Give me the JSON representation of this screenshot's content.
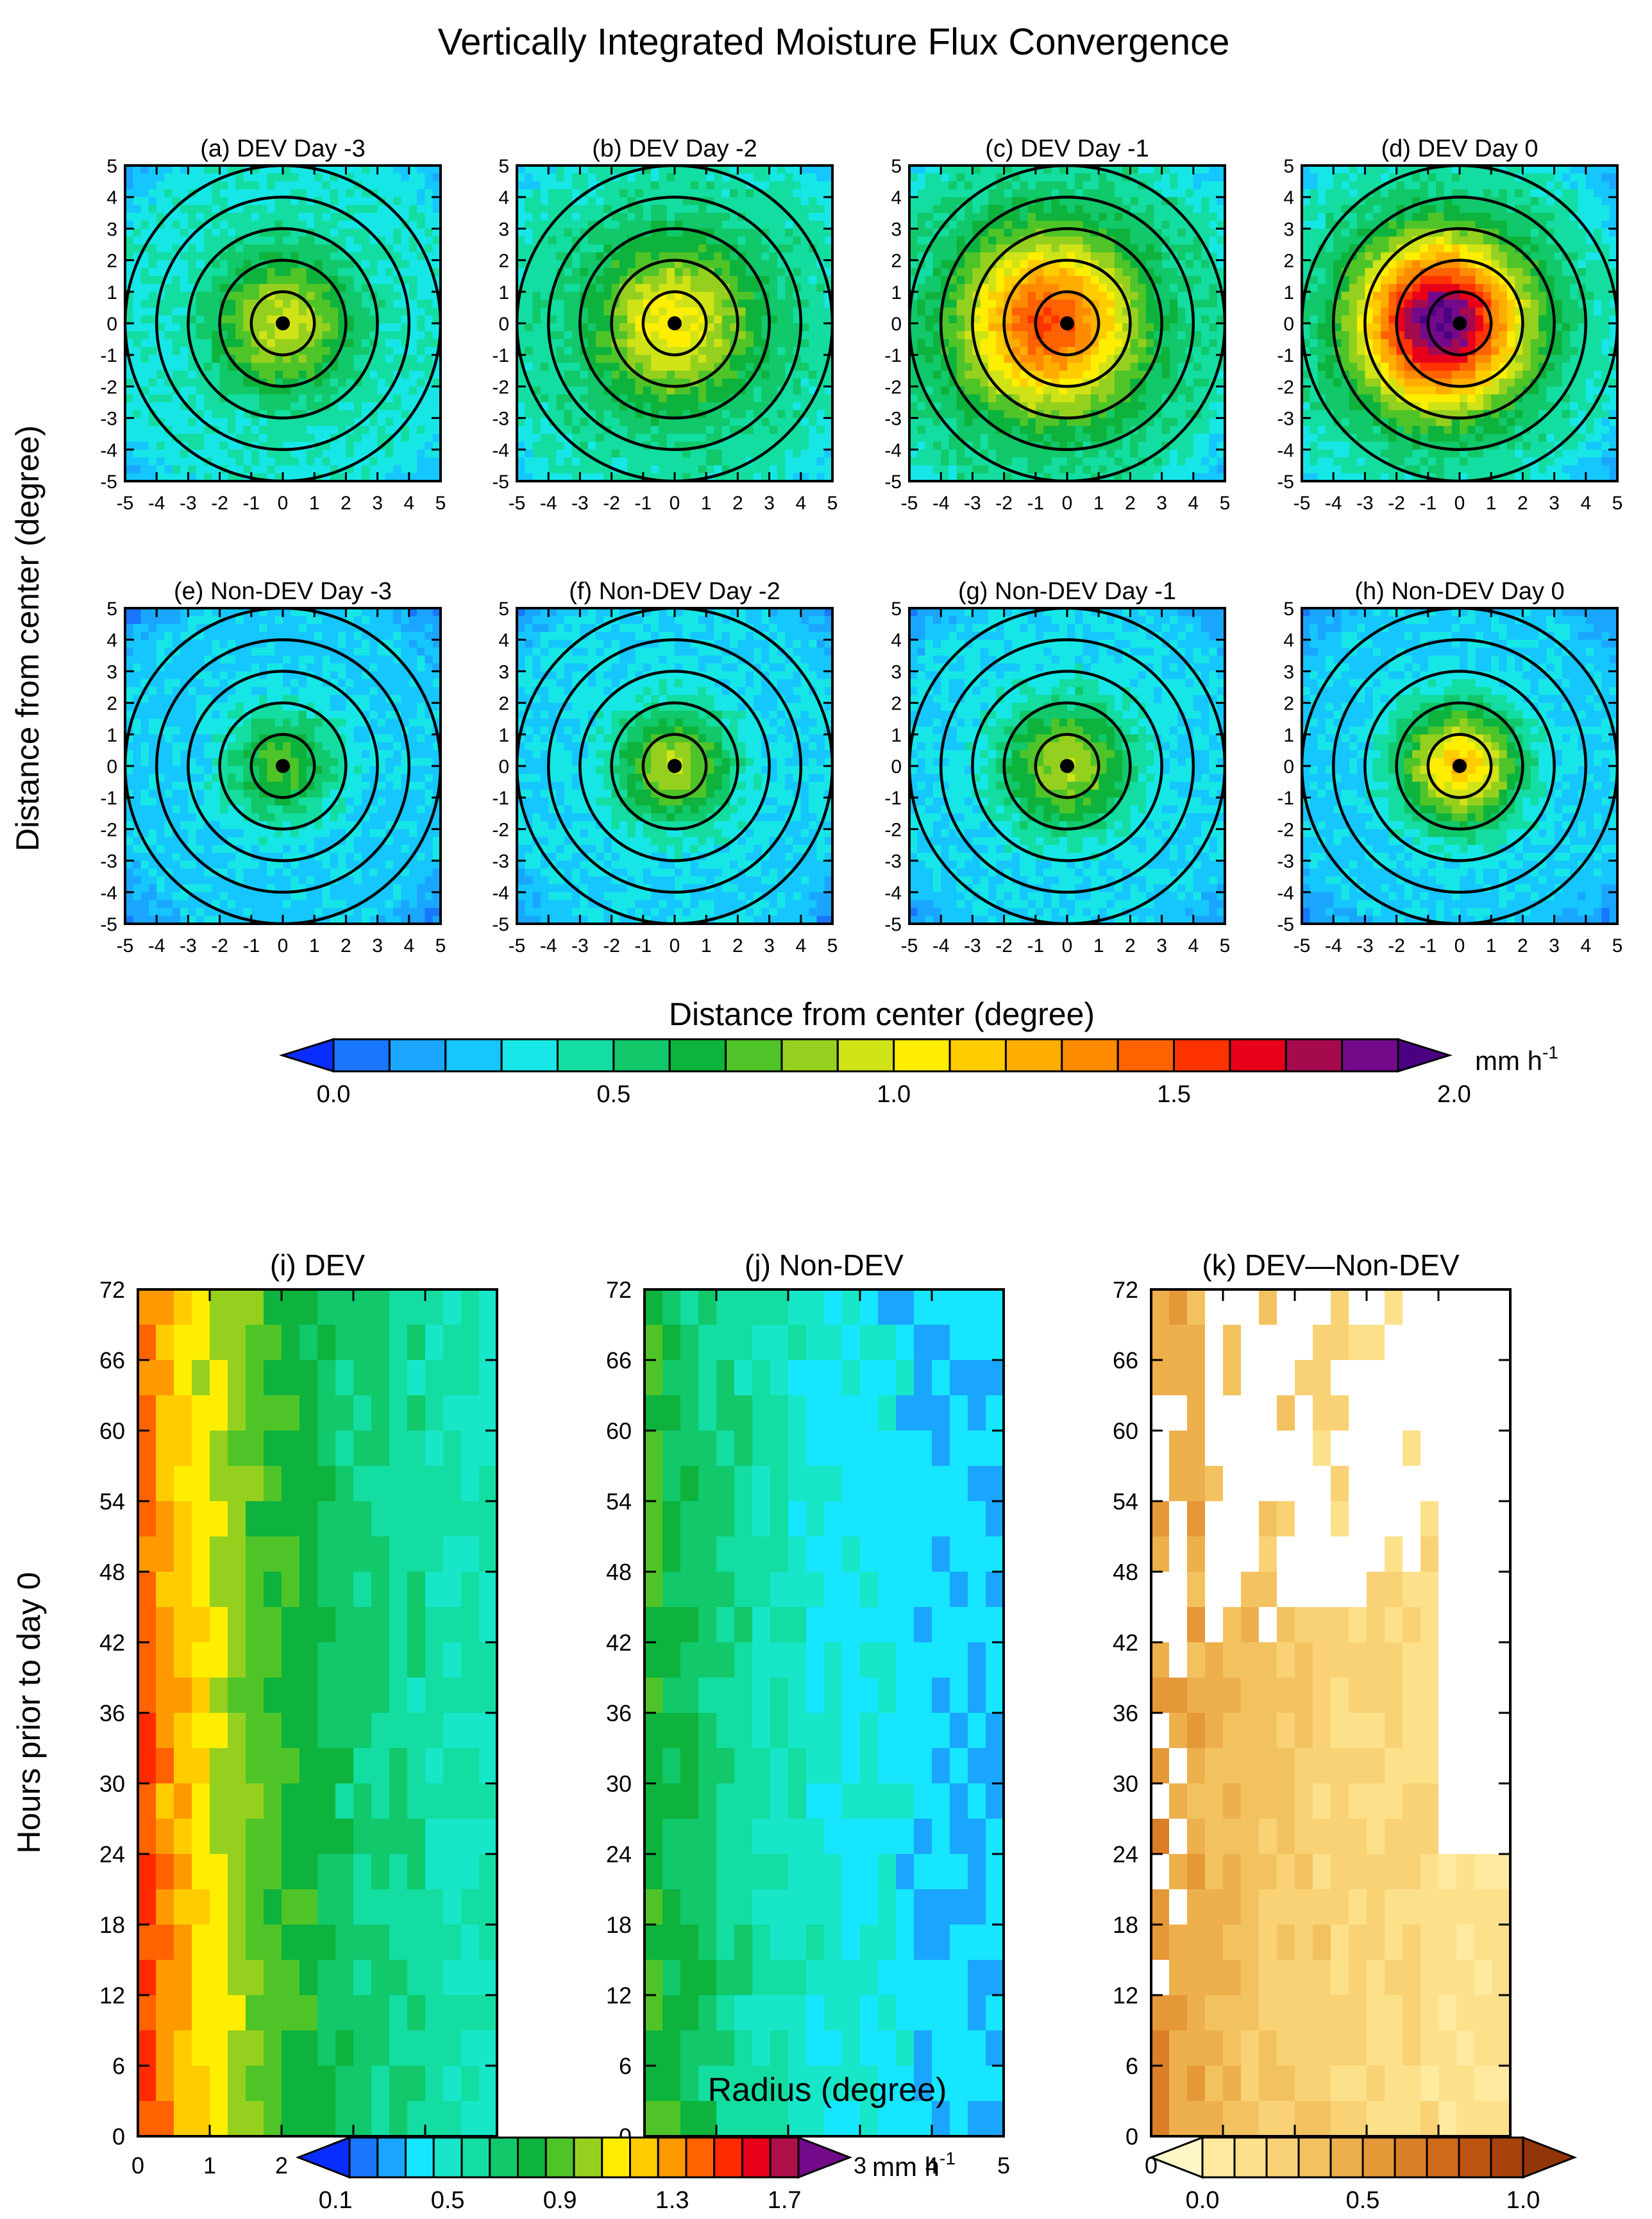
{
  "title": "Vertically Integrated Moisture Flux Convergence",
  "chart_data": [
    {
      "type": "heatmap",
      "group": "composite_maps",
      "shared_ylabel": "Distance from center (degree)",
      "shared_xlabel": "Distance from center (degree)",
      "xlim": [
        -5,
        5
      ],
      "ylim": [
        -5,
        5
      ],
      "ticks": [
        -5,
        -4,
        -3,
        -2,
        -1,
        0,
        1,
        2,
        3,
        4,
        5
      ],
      "ring_radii": [
        1,
        2,
        3,
        4,
        5
      ],
      "panels": [
        {
          "title": "(a) DEV Day -3",
          "peak": 1.0,
          "bg": 0.45,
          "spread": 2.2
        },
        {
          "title": "(b) DEV Day -2",
          "peak": 1.1,
          "bg": 0.5,
          "spread": 2.6
        },
        {
          "title": "(c) DEV Day -1",
          "peak": 1.55,
          "bg": 0.52,
          "spread": 2.7
        },
        {
          "title": "(d) DEV Day 0",
          "peak": 1.95,
          "bg": 0.48,
          "spread": 2.6
        },
        {
          "title": "(e) Non-DEV Day -3",
          "peak": 0.8,
          "bg": 0.35,
          "spread": 1.8
        },
        {
          "title": "(f) Non-DEV Day -2",
          "peak": 0.95,
          "bg": 0.38,
          "spread": 1.8
        },
        {
          "title": "(g) Non-DEV Day -1",
          "peak": 0.95,
          "bg": 0.38,
          "spread": 2.0
        },
        {
          "title": "(h) Non-DEV Day 0",
          "peak": 1.2,
          "bg": 0.35,
          "spread": 1.9
        }
      ],
      "colorbar": {
        "unit": "mm h",
        "unit_exponent": "-1",
        "levels": [
          0.0,
          2.0
        ],
        "tick_labels": [
          "0.0",
          "0.5",
          "1.0",
          "1.5",
          "2.0"
        ],
        "colors": [
          "#0a2dff",
          "#1976ff",
          "#1aa6ff",
          "#16c6ff",
          "#17e6e6",
          "#13dda0",
          "#11c86a",
          "#0db33c",
          "#4fc428",
          "#96d01e",
          "#cfe317",
          "#ffee00",
          "#ffcc00",
          "#ffae00",
          "#ff8c00",
          "#ff6200",
          "#ff3300",
          "#e8001a",
          "#a50a4f",
          "#720a8a",
          "#4b0082"
        ]
      }
    },
    {
      "type": "heatmap",
      "group": "hovmoller",
      "shared_xlabel": "Radius (degree)",
      "ylabel": "Hours prior to day 0",
      "xlim": [
        0,
        5
      ],
      "ylim": [
        0,
        72
      ],
      "xticks": [
        0,
        1,
        2,
        3,
        4,
        5
      ],
      "yticks": [
        0,
        6,
        12,
        18,
        24,
        30,
        36,
        42,
        48,
        54,
        60,
        66,
        72
      ],
      "panels": [
        {
          "title": "(i) DEV",
          "core": 1.4,
          "edge": 0.42
        },
        {
          "title": "(j) Non-DEV",
          "core": 0.85,
          "edge": 0.28
        },
        {
          "title": "(k) DEV—Non-DEV",
          "core": 0.6,
          "edge": 0.15
        }
      ],
      "colorbar_main": {
        "unit": "mm h",
        "unit_exponent": "-1",
        "tick_labels": [
          "0.1",
          "0.5",
          "0.9",
          "1.3",
          "1.7"
        ],
        "colors": [
          "#0a2dff",
          "#1976ff",
          "#1aa6ff",
          "#16e6ff",
          "#17e6c8",
          "#13dda0",
          "#11c86a",
          "#0db33c",
          "#4fc428",
          "#96d01e",
          "#ffee00",
          "#ffcc00",
          "#ff9900",
          "#ff6200",
          "#ff2a00",
          "#e8001a",
          "#b0104a",
          "#720a8a"
        ]
      },
      "colorbar_diff": {
        "tick_labels": [
          "0.0",
          "0.5",
          "1.0"
        ],
        "colors": [
          "#fff6c8",
          "#ffeaa0",
          "#fde08a",
          "#f9d275",
          "#f3c260",
          "#edb04c",
          "#e59838",
          "#da7f27",
          "#cf6a1b",
          "#bd5412",
          "#a8420c",
          "#93350a"
        ]
      }
    }
  ]
}
